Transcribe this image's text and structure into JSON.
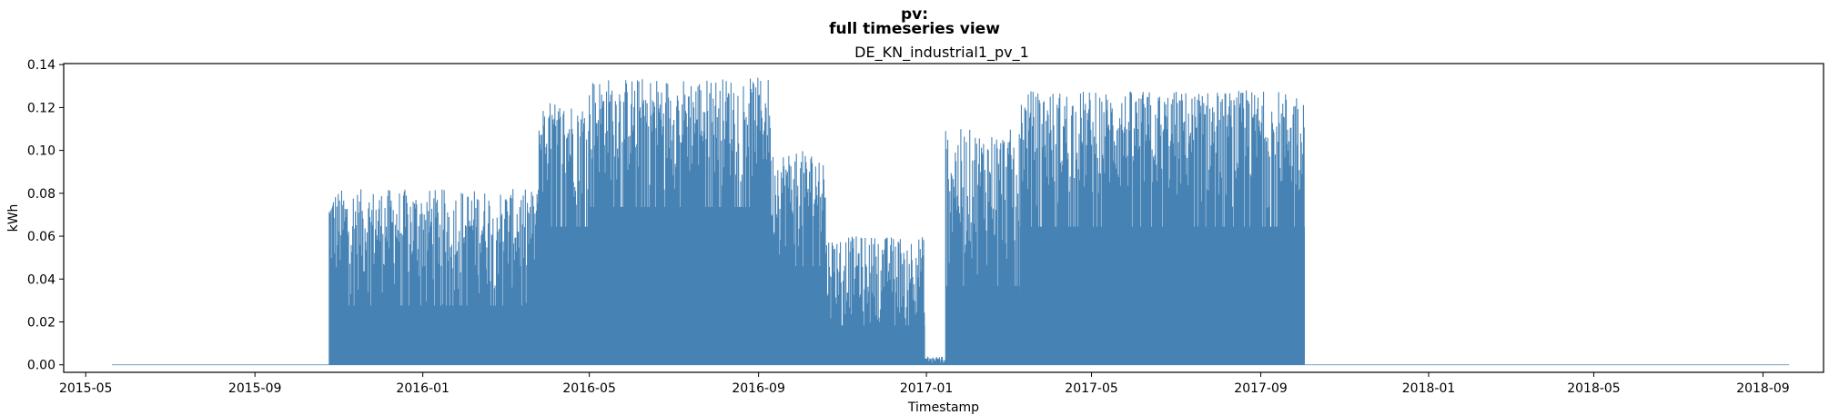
{
  "figure": {
    "suptitle_line1": "pv:",
    "suptitle_line2": "full timeseries view"
  },
  "chart_data": {
    "type": "area",
    "title": "DE_KN_industrial1_pv_1",
    "xlabel": "Timestamp",
    "ylabel": "kWh",
    "x_ticks": [
      "2015-05",
      "2015-09",
      "2016-01",
      "2016-05",
      "2016-09",
      "2017-01",
      "2017-05",
      "2017-09",
      "2018-01",
      "2018-05",
      "2018-09"
    ],
    "y_ticks": [
      "0.00",
      "0.02",
      "0.04",
      "0.06",
      "0.08",
      "0.10",
      "0.12",
      "0.14"
    ],
    "xlim": [
      "2015-04-15",
      "2018-10-15"
    ],
    "ylim": [
      -0.0035,
      0.1405
    ],
    "grid": false,
    "color": "#4682b4",
    "series": [
      {
        "x_range": [
          "2015-05-20",
          "2018-09-20"
        ],
        "description_segments": [
          {
            "start": "2015-05-20",
            "end": "2015-10-25",
            "daily_peak_range": [
              0.0,
              0.0
            ]
          },
          {
            "start": "2015-10-25",
            "end": "2016-03-25",
            "daily_peak_range": [
              0.03,
              0.082
            ]
          },
          {
            "start": "2016-03-25",
            "end": "2016-05-01",
            "daily_peak_range": [
              0.07,
              0.123
            ]
          },
          {
            "start": "2016-05-01",
            "end": "2016-09-10",
            "daily_peak_range": [
              0.08,
              0.134
            ]
          },
          {
            "start": "2016-09-10",
            "end": "2016-10-20",
            "daily_peak_range": [
              0.05,
              0.1
            ]
          },
          {
            "start": "2016-10-20",
            "end": "2016-12-31",
            "daily_peak_range": [
              0.02,
              0.06
            ]
          },
          {
            "start": "2016-12-31",
            "end": "2017-01-15",
            "daily_peak_range": [
              0.0,
              0.004
            ]
          },
          {
            "start": "2017-01-15",
            "end": "2017-03-10",
            "daily_peak_range": [
              0.04,
              0.11
            ]
          },
          {
            "start": "2017-03-10",
            "end": "2017-10-03",
            "daily_peak_range": [
              0.07,
              0.128
            ]
          },
          {
            "start": "2017-10-03",
            "end": "2018-09-20",
            "daily_peak_range": [
              0.0,
              0.0
            ]
          }
        ]
      }
    ]
  }
}
